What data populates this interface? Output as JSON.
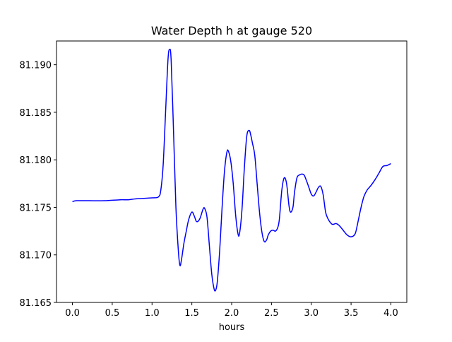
{
  "chart_data": {
    "type": "line",
    "title": "Water Depth h at gauge 520",
    "xlabel": "hours",
    "ylabel": "",
    "xlim": [
      -0.2,
      4.2
    ],
    "ylim": [
      81.165,
      81.1925
    ],
    "grid": false,
    "x_ticks": [
      0.0,
      0.5,
      1.0,
      1.5,
      2.0,
      2.5,
      3.0,
      3.5,
      4.0
    ],
    "x_tick_labels": [
      "0.0",
      "0.5",
      "1.0",
      "1.5",
      "2.0",
      "2.5",
      "3.0",
      "3.5",
      "4.0"
    ],
    "y_ticks": [
      81.165,
      81.17,
      81.175,
      81.18,
      81.185,
      81.19
    ],
    "y_tick_labels": [
      "81.165",
      "81.170",
      "81.175",
      "81.180",
      "81.185",
      "81.190"
    ],
    "series": [
      {
        "color": "#0000ff",
        "x": [
          0.0,
          0.05,
          0.2,
          0.4,
          0.6,
          0.7,
          0.8,
          1.0,
          1.08,
          1.11,
          1.14,
          1.17,
          1.2,
          1.22,
          1.24,
          1.27,
          1.3,
          1.33,
          1.35,
          1.37,
          1.4,
          1.43,
          1.46,
          1.5,
          1.53,
          1.56,
          1.6,
          1.64,
          1.66,
          1.69,
          1.72,
          1.75,
          1.78,
          1.8,
          1.82,
          1.85,
          1.88,
          1.91,
          1.94,
          1.96,
          1.99,
          2.02,
          2.05,
          2.08,
          2.1,
          2.13,
          2.16,
          2.19,
          2.22,
          2.24,
          2.26,
          2.29,
          2.32,
          2.35,
          2.38,
          2.41,
          2.44,
          2.46,
          2.49,
          2.52,
          2.55,
          2.58,
          2.6,
          2.63,
          2.66,
          2.69,
          2.72,
          2.74,
          2.77,
          2.79,
          2.82,
          2.85,
          2.88,
          2.91,
          2.94,
          2.97,
          3.0,
          3.03,
          3.06,
          3.09,
          3.12,
          3.15,
          3.18,
          3.21,
          3.24,
          3.27,
          3.31,
          3.35,
          3.4,
          3.45,
          3.5,
          3.55,
          3.58,
          3.62,
          3.66,
          3.7,
          3.75,
          3.8,
          3.85,
          3.9,
          3.95,
          4.0
        ],
        "y": [
          81.1756,
          81.1757,
          81.1757,
          81.1757,
          81.1758,
          81.1758,
          81.1759,
          81.176,
          81.1761,
          81.1768,
          81.1795,
          81.185,
          81.1905,
          81.1916,
          81.1905,
          81.183,
          81.175,
          81.1705,
          81.1689,
          81.1695,
          81.1712,
          81.1725,
          81.1737,
          81.1745,
          81.1741,
          81.1735,
          81.1738,
          81.1748,
          81.1749,
          81.174,
          81.171,
          81.168,
          81.1664,
          81.1663,
          81.1672,
          81.1705,
          81.175,
          81.1788,
          81.1808,
          81.1809,
          81.1798,
          81.1775,
          81.1742,
          81.1722,
          81.1723,
          81.1748,
          81.1792,
          81.1825,
          81.1831,
          81.1826,
          81.1818,
          81.1805,
          81.1775,
          81.1745,
          81.1724,
          81.1714,
          81.1716,
          81.1721,
          81.1725,
          81.1726,
          81.1725,
          81.1729,
          81.1738,
          81.1768,
          81.1781,
          81.1775,
          81.1752,
          81.1745,
          81.175,
          81.1766,
          81.1781,
          81.1784,
          81.1785,
          81.1784,
          81.1778,
          81.1771,
          81.1764,
          81.1762,
          81.1766,
          81.1771,
          81.1772,
          81.1763,
          81.1745,
          81.1738,
          81.1734,
          81.1732,
          81.1733,
          81.1731,
          81.1726,
          81.1721,
          81.1719,
          81.1722,
          81.1732,
          81.1748,
          81.1761,
          81.1768,
          81.1773,
          81.1779,
          81.1786,
          81.1793,
          81.1794,
          81.1796
        ]
      }
    ]
  }
}
